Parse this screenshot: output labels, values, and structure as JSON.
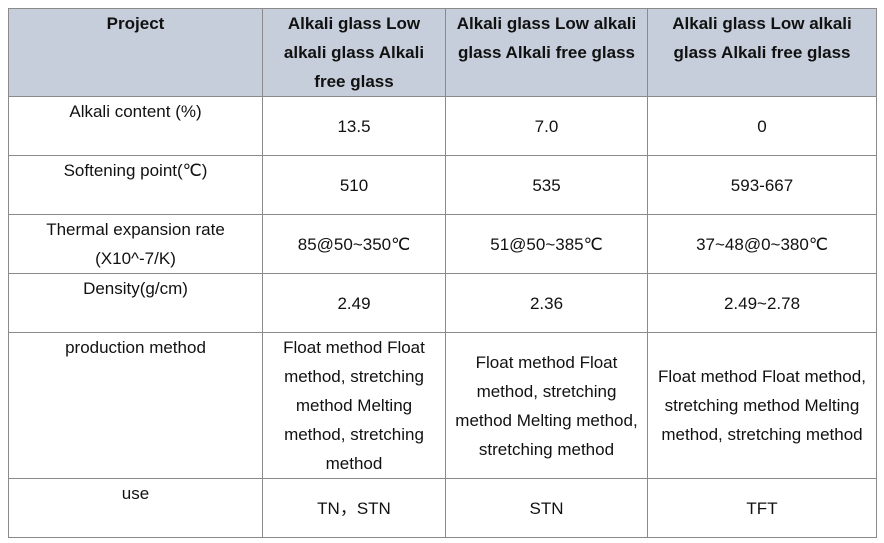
{
  "table": {
    "header": [
      "Project",
      "Alkali glass Low alkali glass Alkali free glass",
      "Alkali glass Low alkali glass Alkali free glass",
      "Alkali glass Low alkali glass Alkali free glass"
    ],
    "rows": [
      [
        "Alkali content (%)",
        "13.5",
        "7.0",
        "0"
      ],
      [
        "Softening point(℃)",
        "510",
        "535",
        "593-667"
      ],
      [
        "Thermal expansion rate (X10^-7/K)",
        "85@50~350℃",
        "51@50~385℃",
        "37~48@0~380℃"
      ],
      [
        "Density(g/cm)",
        "2.49",
        "2.36",
        "2.49~2.78"
      ],
      [
        "production method",
        "Float method Float method, stretching method Melting method, stretching method",
        "Float method Float method, stretching method Melting method, stretching method",
        "Float method Float method, stretching method Melting method, stretching method"
      ],
      [
        "use",
        "TN，STN",
        "STN",
        "TFT"
      ]
    ]
  }
}
